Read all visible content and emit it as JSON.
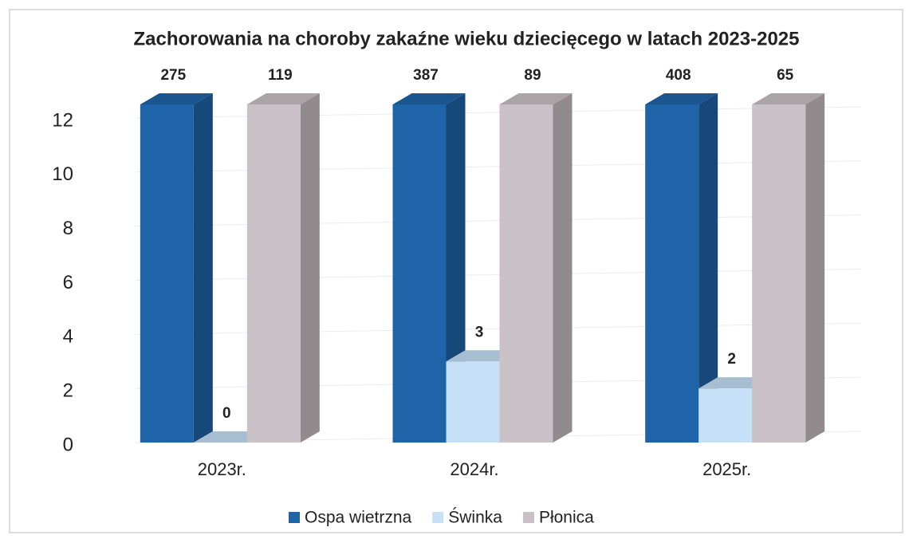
{
  "chart_data": {
    "type": "bar3d",
    "title": "Zachorowania na choroby zakaźne wieku dziecięcego w latach 2023-2025",
    "categories": [
      "2023r.",
      "2024r.",
      "2025r."
    ],
    "series": [
      {
        "name": "Ospa wietrzna",
        "color": "#1f64a8",
        "values": [
          275,
          387,
          408
        ]
      },
      {
        "name": "Świnka",
        "color": "#c5e0f7",
        "values": [
          0,
          3,
          2
        ]
      },
      {
        "name": "Płonica",
        "color": "#c9c1c5",
        "values": [
          119,
          89,
          65
        ]
      }
    ],
    "ylim": [
      0,
      12.5
    ],
    "yticks": [
      0,
      2,
      4,
      6,
      8,
      10,
      12
    ],
    "grid": true,
    "legend": "bottom"
  }
}
